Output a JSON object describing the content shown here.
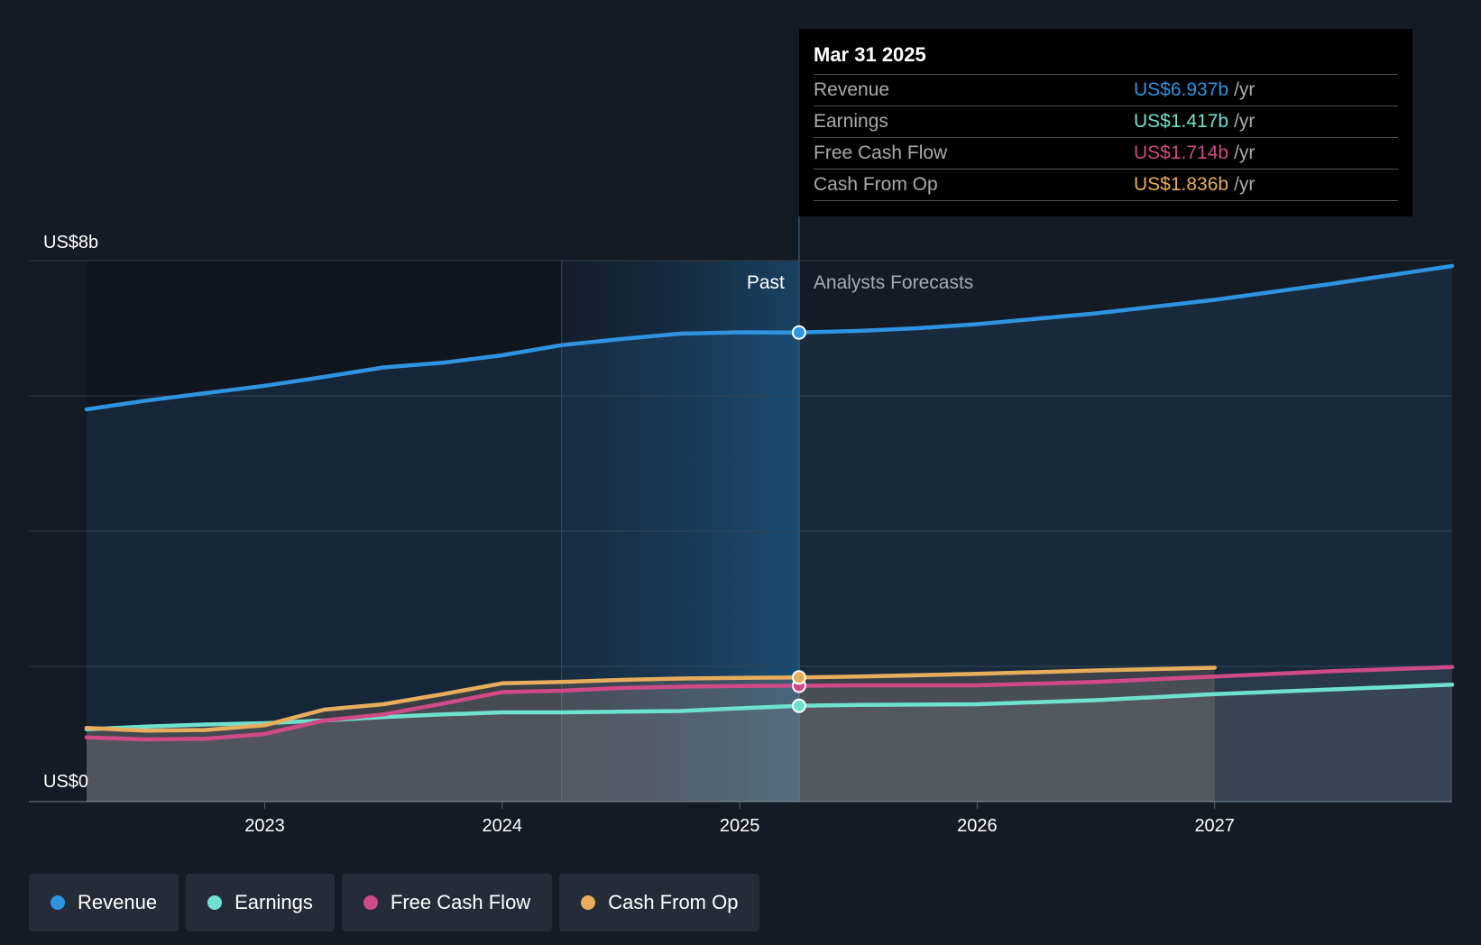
{
  "chart_data": {
    "type": "line",
    "y_axis": {
      "top_label": "US$8b",
      "bottom_label": "US$0",
      "ylim": [
        0,
        8
      ],
      "unit": "billion USD"
    },
    "x_ticks": [
      2023,
      2024,
      2025,
      2026,
      2027
    ],
    "xlim": [
      2022.25,
      2028.0
    ],
    "divider_x": 2025.25,
    "highlight_range": [
      2024.25,
      2025.25
    ],
    "past_label": "Past",
    "forecast_label": "Analysts Forecasts",
    "series": [
      {
        "name": "Revenue",
        "color": "#2e93e0",
        "points": [
          [
            2022.25,
            5.8
          ],
          [
            2022.5,
            5.93
          ],
          [
            2022.75,
            6.04
          ],
          [
            2023.0,
            6.15
          ],
          [
            2023.25,
            6.28
          ],
          [
            2023.5,
            6.42
          ],
          [
            2023.75,
            6.49
          ],
          [
            2024.0,
            6.6
          ],
          [
            2024.25,
            6.75
          ],
          [
            2024.5,
            6.84
          ],
          [
            2024.75,
            6.92
          ],
          [
            2025.0,
            6.94
          ],
          [
            2025.25,
            6.937
          ],
          [
            2025.5,
            6.96
          ],
          [
            2025.75,
            7.0
          ],
          [
            2026.0,
            7.06
          ],
          [
            2026.5,
            7.22
          ],
          [
            2027.0,
            7.42
          ],
          [
            2027.5,
            7.66
          ],
          [
            2028.0,
            7.92
          ]
        ]
      },
      {
        "name": "Earnings",
        "color": "#6ee2cf",
        "points": [
          [
            2022.25,
            1.07
          ],
          [
            2022.5,
            1.11
          ],
          [
            2022.75,
            1.14
          ],
          [
            2023.0,
            1.16
          ],
          [
            2023.25,
            1.2
          ],
          [
            2023.5,
            1.25
          ],
          [
            2023.75,
            1.29
          ],
          [
            2024.0,
            1.32
          ],
          [
            2024.25,
            1.32
          ],
          [
            2024.5,
            1.33
          ],
          [
            2024.75,
            1.34
          ],
          [
            2025.0,
            1.38
          ],
          [
            2025.25,
            1.417
          ],
          [
            2025.5,
            1.43
          ],
          [
            2026.0,
            1.44
          ],
          [
            2026.5,
            1.5
          ],
          [
            2027.0,
            1.59
          ],
          [
            2027.5,
            1.66
          ],
          [
            2028.0,
            1.73
          ]
        ]
      },
      {
        "name": "Free Cash Flow",
        "color": "#cf4a87",
        "points": [
          [
            2022.25,
            0.95
          ],
          [
            2022.5,
            0.92
          ],
          [
            2022.75,
            0.93
          ],
          [
            2023.0,
            1.0
          ],
          [
            2023.25,
            1.2
          ],
          [
            2023.5,
            1.29
          ],
          [
            2023.75,
            1.45
          ],
          [
            2024.0,
            1.62
          ],
          [
            2024.25,
            1.64
          ],
          [
            2024.5,
            1.68
          ],
          [
            2024.75,
            1.7
          ],
          [
            2025.0,
            1.71
          ],
          [
            2025.25,
            1.714
          ],
          [
            2025.5,
            1.72
          ],
          [
            2026.0,
            1.72
          ],
          [
            2026.5,
            1.77
          ],
          [
            2027.0,
            1.85
          ],
          [
            2027.5,
            1.93
          ],
          [
            2028.0,
            1.99
          ]
        ]
      },
      {
        "name": "Cash From Op",
        "color": "#e8ad5c",
        "points": [
          [
            2022.25,
            1.09
          ],
          [
            2022.5,
            1.05
          ],
          [
            2022.75,
            1.06
          ],
          [
            2023.0,
            1.13
          ],
          [
            2023.25,
            1.36
          ],
          [
            2023.5,
            1.44
          ],
          [
            2023.75,
            1.59
          ],
          [
            2024.0,
            1.75
          ],
          [
            2024.25,
            1.77
          ],
          [
            2024.5,
            1.8
          ],
          [
            2024.75,
            1.82
          ],
          [
            2025.0,
            1.83
          ],
          [
            2025.25,
            1.836
          ],
          [
            2025.5,
            1.85
          ],
          [
            2026.0,
            1.89
          ],
          [
            2026.5,
            1.94
          ],
          [
            2027.0,
            1.98
          ]
        ]
      }
    ]
  },
  "tooltip": {
    "date": "Mar 31 2025",
    "rows": [
      {
        "label": "Revenue",
        "value": "US$6.937b",
        "unit": "/yr",
        "color": "#2e93e0"
      },
      {
        "label": "Earnings",
        "value": "US$1.417b",
        "unit": "/yr",
        "color": "#6ee2cf"
      },
      {
        "label": "Free Cash Flow",
        "value": "US$1.714b",
        "unit": "/yr",
        "color": "#cf4a87"
      },
      {
        "label": "Cash From Op",
        "value": "US$1.836b",
        "unit": "/yr",
        "color": "#e8ad5c"
      }
    ]
  },
  "legend": [
    {
      "label": "Revenue",
      "color": "#2e93e0"
    },
    {
      "label": "Earnings",
      "color": "#6ee2cf"
    },
    {
      "label": "Free Cash Flow",
      "color": "#cf4a87"
    },
    {
      "label": "Cash From Op",
      "color": "#e8ad5c"
    }
  ]
}
